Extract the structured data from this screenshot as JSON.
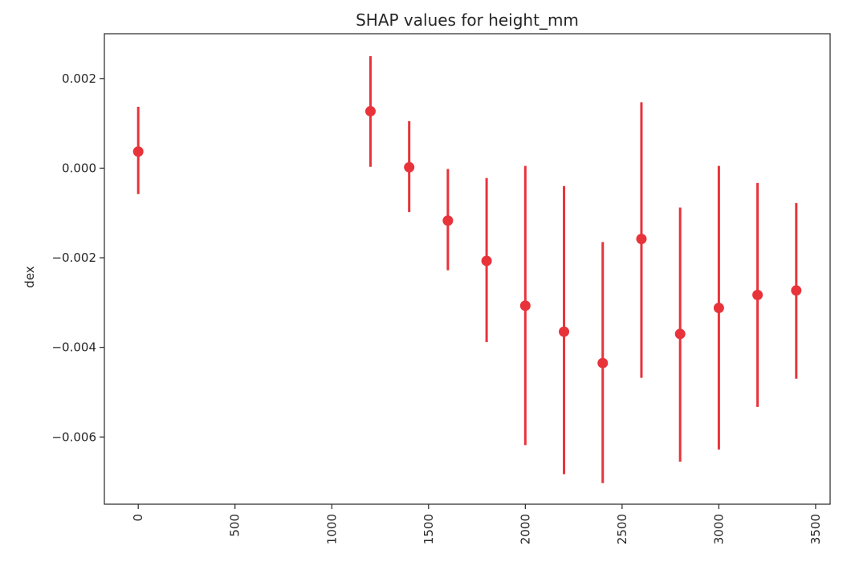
{
  "chart_data": {
    "type": "scatter",
    "title": "SHAP values for height_mm",
    "xlabel": "",
    "ylabel": "dex",
    "xlim": [
      -175,
      3575
    ],
    "ylim": [
      -0.0075,
      0.003
    ],
    "xticks": [
      0,
      500,
      1000,
      1500,
      2000,
      2500,
      3000,
      3500
    ],
    "yticks": [
      0.002,
      0.0,
      -0.002,
      -0.004,
      -0.006
    ],
    "ytick_labels": [
      "0.002",
      "0.000",
      "−0.002",
      "−0.004",
      "−0.006"
    ],
    "grid": false,
    "color": "#e8333b",
    "series": [
      {
        "points": [
          {
            "x": 0,
            "y": 0.00037,
            "lo": -0.00058,
            "hi": 0.00137
          },
          {
            "x": 1200,
            "y": 0.00127,
            "lo": 3e-05,
            "hi": 0.0025
          },
          {
            "x": 1400,
            "y": 2e-05,
            "lo": -0.00098,
            "hi": 0.00105
          },
          {
            "x": 1600,
            "y": -0.00117,
            "lo": -0.00228,
            "hi": -2e-05
          },
          {
            "x": 1800,
            "y": -0.00207,
            "lo": -0.00388,
            "hi": -0.00022
          },
          {
            "x": 2000,
            "y": -0.00307,
            "lo": -0.00618,
            "hi": 5e-05
          },
          {
            "x": 2200,
            "y": -0.00365,
            "lo": -0.00683,
            "hi": -0.0004
          },
          {
            "x": 2400,
            "y": -0.00435,
            "lo": -0.00703,
            "hi": -0.00165
          },
          {
            "x": 2600,
            "y": -0.00158,
            "lo": -0.00468,
            "hi": 0.00147
          },
          {
            "x": 2800,
            "y": -0.0037,
            "lo": -0.00655,
            "hi": -0.00088
          },
          {
            "x": 3000,
            "y": -0.00312,
            "lo": -0.00628,
            "hi": 5e-05
          },
          {
            "x": 3200,
            "y": -0.00283,
            "lo": -0.00533,
            "hi": -0.00033
          },
          {
            "x": 3400,
            "y": -0.00273,
            "lo": -0.0047,
            "hi": -0.00078
          }
        ]
      }
    ]
  }
}
